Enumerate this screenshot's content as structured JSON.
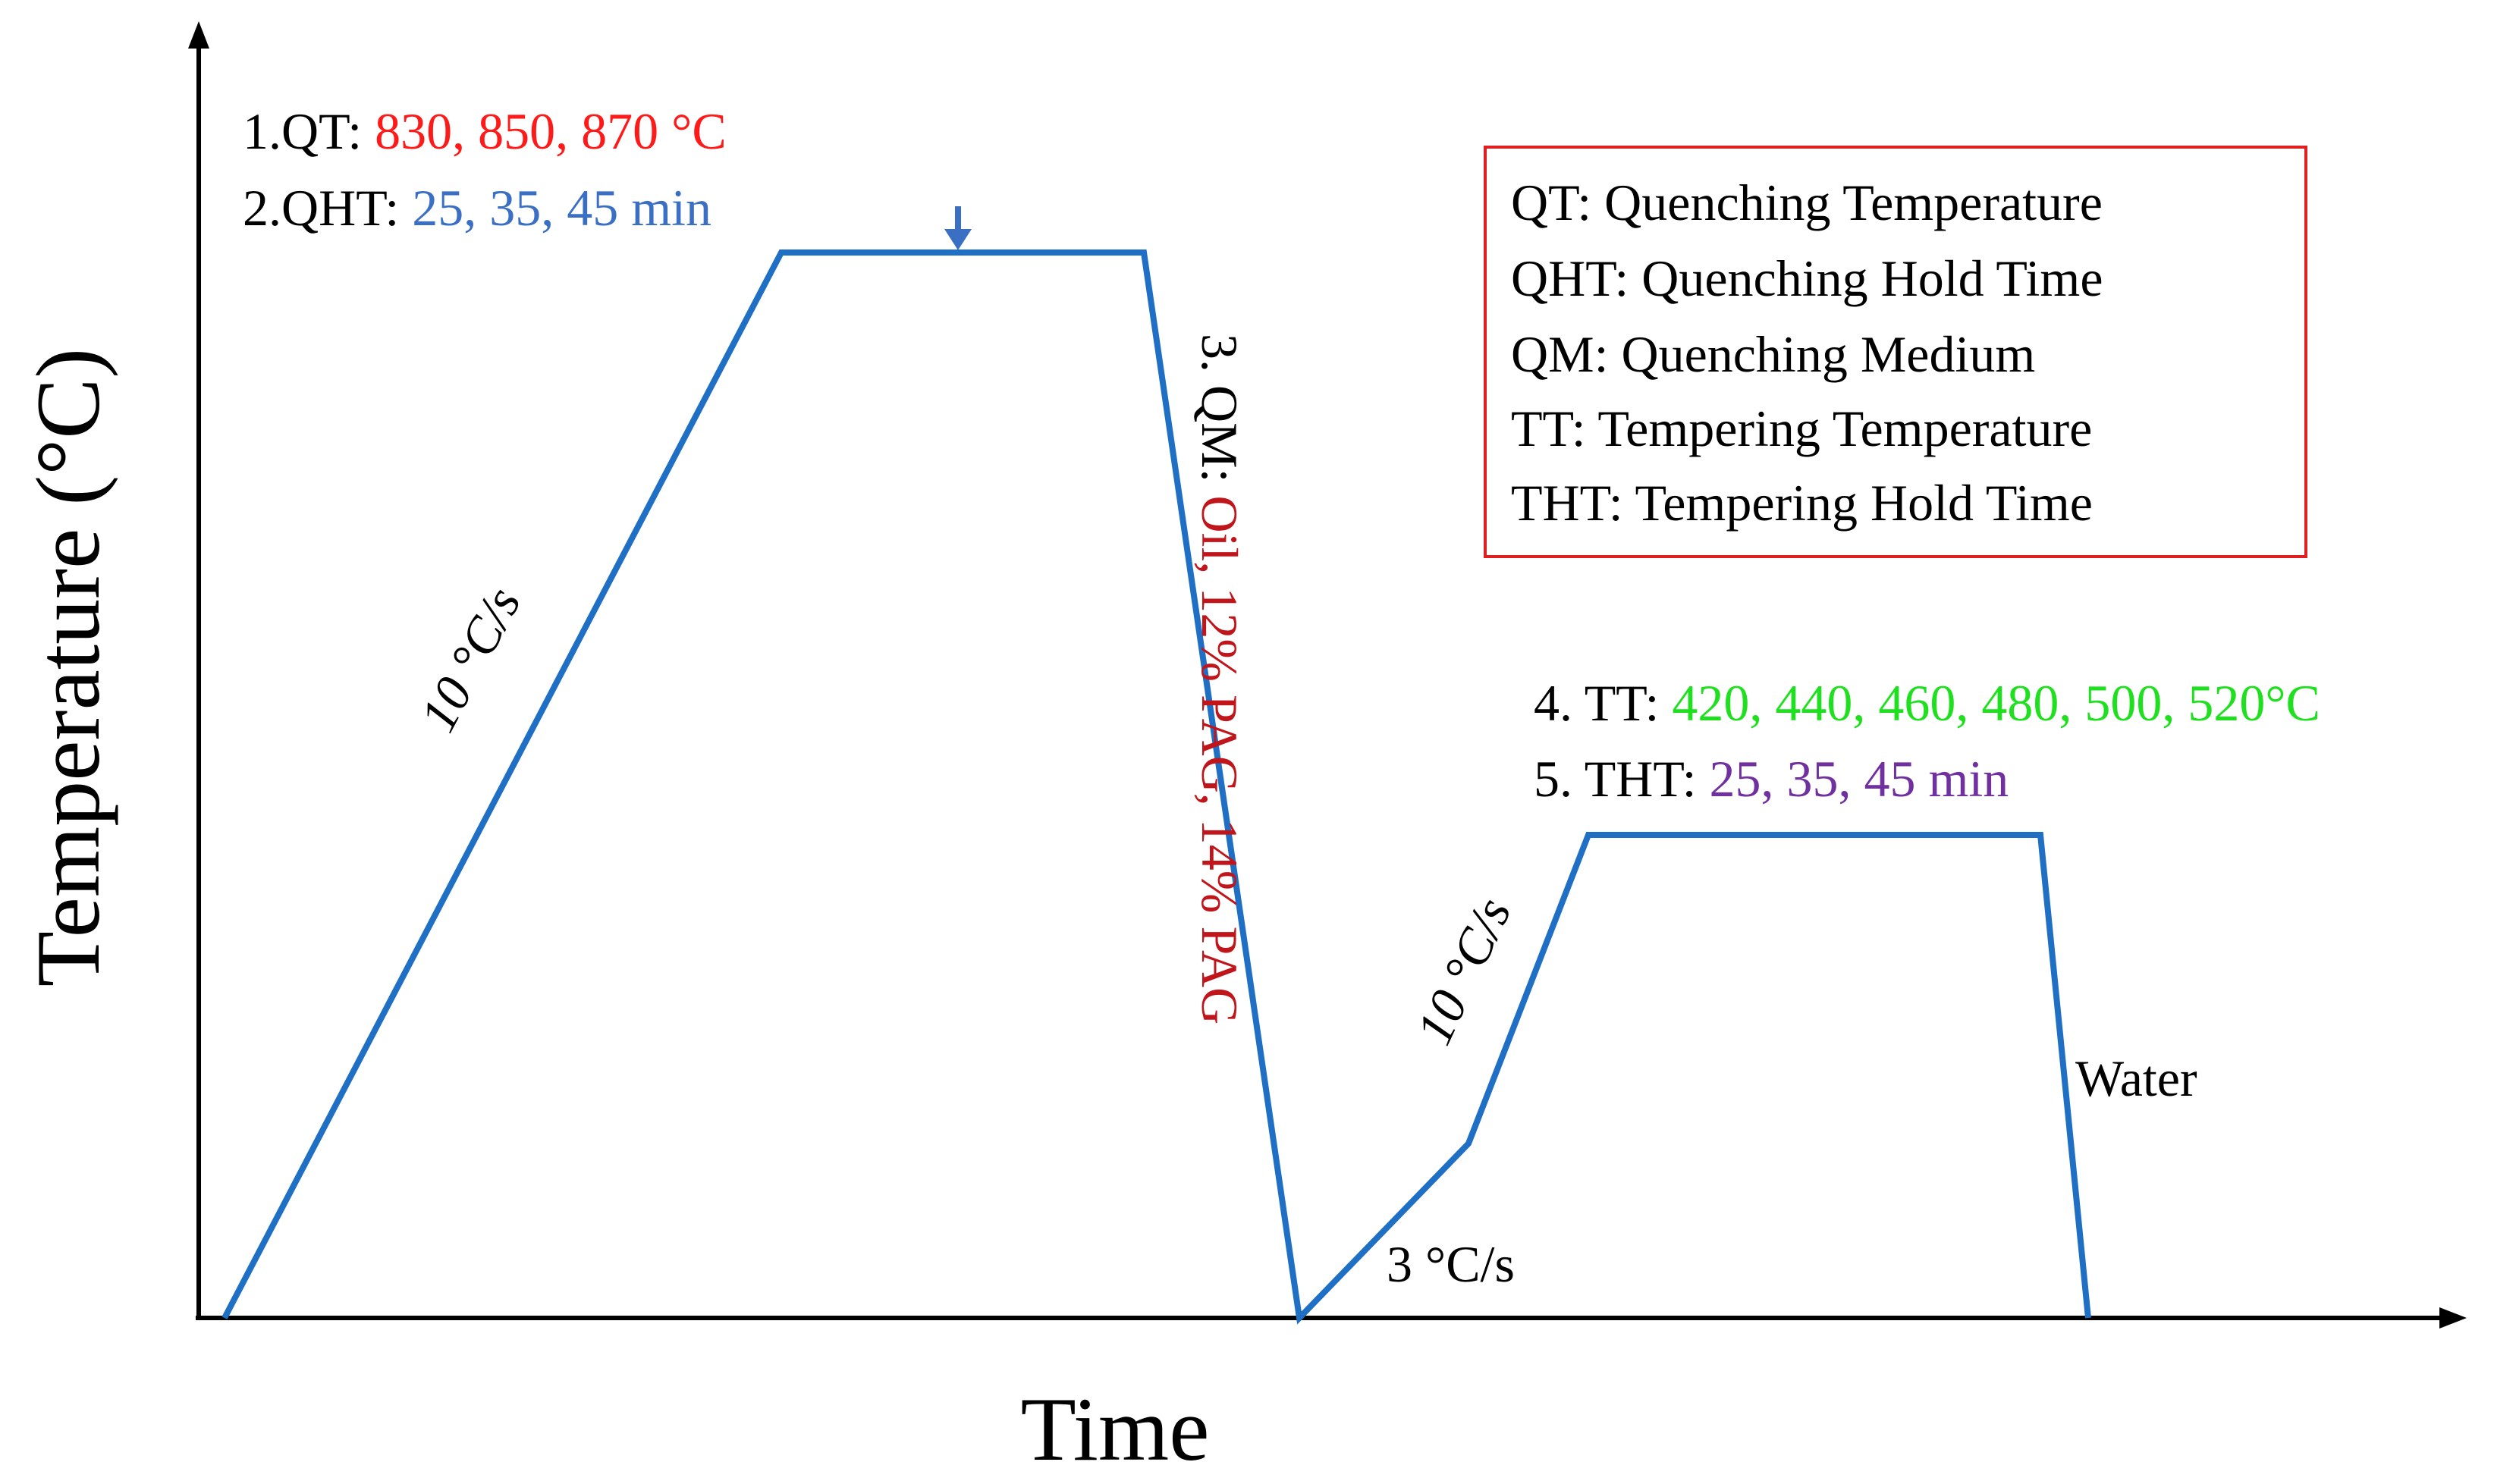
{
  "axes": {
    "x_label": "Time",
    "y_label": "Temperature (°C)"
  },
  "annotations": {
    "step1_prefix": "1.QT: ",
    "step1_values": "830, 850, 870 °C",
    "step2_prefix": "2.QHT: ",
    "step2_values": "25, 35, 45 min",
    "heating_rate_1": "10 °C/s",
    "step3_prefix": "3. QM: ",
    "step3_values": "Oil, 12% PAG, 14% PAG",
    "heating_rate_slow": "3 °C/s",
    "heating_rate_2": "10 °C/s",
    "step4_prefix": "4. TT: ",
    "step4_values": "420, 440, 460, 480, 500, 520°C",
    "step5_prefix": "5. THT: ",
    "step5_values": "25, 35, 45 min",
    "water_label": "Water"
  },
  "legend": {
    "entries": [
      "QT: Quenching Temperature",
      "QHT: Quenching Hold Time",
      "QM: Quenching Medium",
      "TT: Tempering Temperature",
      "THT: Tempering Hold Time"
    ]
  },
  "colors": {
    "curve": "#1f6fc5",
    "axis": "#000000",
    "qt_values": "#ff1a1a",
    "qht_values": "#3a6fc4",
    "qm_values": "#c0161b",
    "tt_values": "#1ee01e",
    "tht_values": "#7030a0",
    "legend_border": "#e02020"
  }
}
